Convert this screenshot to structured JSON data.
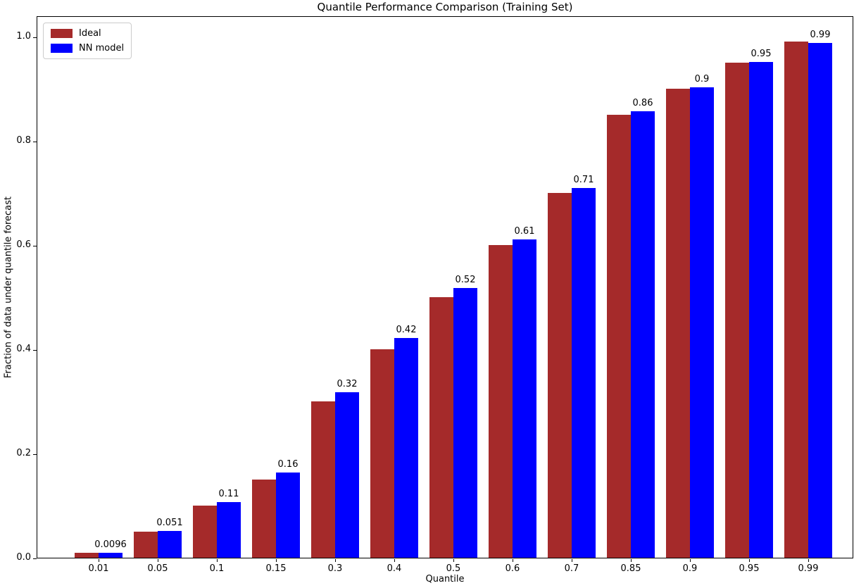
{
  "chart_data": {
    "type": "bar",
    "title": "Quantile Performance Comparison (Training Set)",
    "xlabel": "Quantile",
    "ylabel": "Fraction of data under quantile forecast",
    "categories": [
      "0.01",
      "0.05",
      "0.1",
      "0.15",
      "0.3",
      "0.4",
      "0.5",
      "0.6",
      "0.7",
      "0.85",
      "0.9",
      "0.95",
      "0.99"
    ],
    "series": [
      {
        "name": "Ideal",
        "color": "#A52A2A",
        "values": [
          0.01,
          0.05,
          0.1,
          0.15,
          0.3,
          0.4,
          0.5,
          0.6,
          0.7,
          0.85,
          0.9,
          0.95,
          0.99
        ]
      },
      {
        "name": "NN model",
        "color": "#0000FF",
        "values": [
          0.0096,
          0.051,
          0.107,
          0.163,
          0.318,
          0.422,
          0.517,
          0.611,
          0.709,
          0.857,
          0.903,
          0.951,
          0.988
        ],
        "labels": [
          "0.0096",
          "0.051",
          "0.11",
          "0.16",
          "0.32",
          "0.42",
          "0.52",
          "0.61",
          "0.71",
          "0.86",
          "0.9",
          "0.95",
          "0.99"
        ]
      }
    ],
    "yticks": [
      "0.0",
      "0.2",
      "0.4",
      "0.6",
      "0.8",
      "1.0"
    ],
    "ylim": [
      0,
      1.04
    ],
    "grid": false,
    "legend_position": "upper left"
  }
}
